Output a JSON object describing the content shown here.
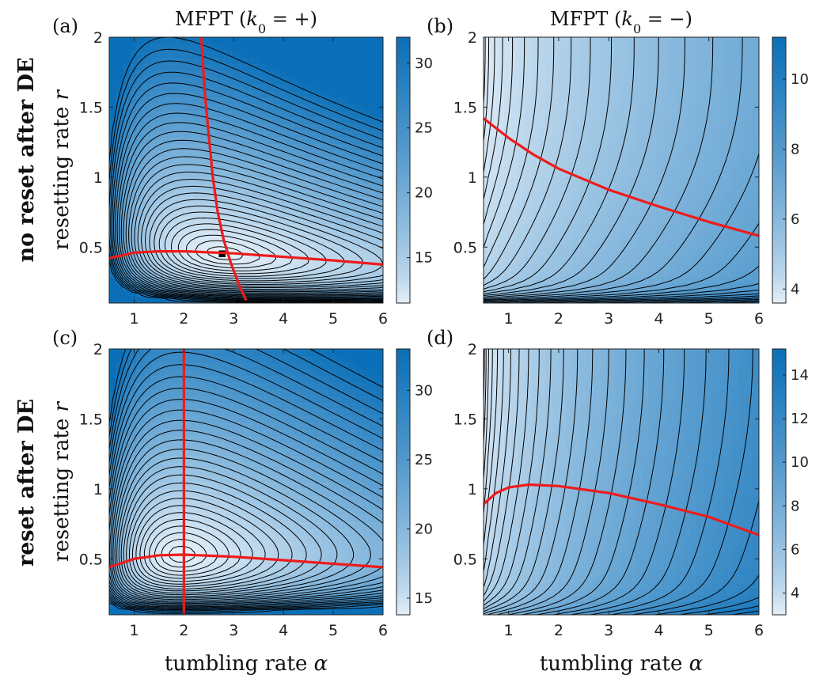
{
  "figure": {
    "row_labels": [
      "no reset after DE",
      "reset after DE"
    ],
    "xlabel_text": "tumbling rate ",
    "xlabel_symbol": "α",
    "ylabel_text": "resetting rate ",
    "ylabel_symbol": "r",
    "colors": {
      "low": "#e3eef8",
      "high": "#0a6fb8",
      "contour": "#000000",
      "optimal_curve": "#ee1b1b"
    }
  },
  "chart_data": [
    {
      "type": "heatmap",
      "panel_label": "(a)",
      "title": "MFPT (k0 = +)",
      "title_parts": {
        "pre": "MFPT (",
        "sym": "k",
        "sub": "0",
        "post": " = +)"
      },
      "xlabel": "",
      "ylabel": "resetting rate r",
      "xlim": [
        0.5,
        6
      ],
      "ylim": [
        0.1,
        2
      ],
      "xticks": [
        "1",
        "2",
        "3",
        "4",
        "5",
        "6"
      ],
      "yticks": [
        "0.5",
        "1",
        "1.5",
        "2"
      ],
      "colorbar": {
        "min": 11.5,
        "max": 32,
        "ticks": [
          "15",
          "20",
          "25",
          "30"
        ],
        "tick_values": [
          15,
          20,
          25,
          30
        ]
      },
      "minimum_point": {
        "alpha": 2.9,
        "r": 0.45
      },
      "optimal_curves": [
        {
          "points": [
            [
              0.5,
              0.42
            ],
            [
              1.0,
              0.46
            ],
            [
              1.5,
              0.47
            ],
            [
              2.0,
              0.47
            ],
            [
              3.0,
              0.455
            ],
            [
              4.0,
              0.43
            ],
            [
              5.0,
              0.405
            ],
            [
              6.0,
              0.375
            ]
          ]
        },
        {
          "points": [
            [
              2.35,
              2.0
            ],
            [
              2.42,
              1.6
            ],
            [
              2.5,
              1.3
            ],
            [
              2.58,
              1.0
            ],
            [
              2.68,
              0.75
            ],
            [
              2.8,
              0.55
            ],
            [
              2.95,
              0.38
            ],
            [
              3.12,
              0.22
            ],
            [
              3.25,
              0.12
            ]
          ]
        }
      ]
    },
    {
      "type": "heatmap",
      "panel_label": "(b)",
      "title": "MFPT (k0 = −)",
      "title_parts": {
        "pre": "MFPT (",
        "sym": "k",
        "sub": "0",
        "post": " = −)"
      },
      "xlabel": "",
      "ylabel": "",
      "xlim": [
        0.5,
        6
      ],
      "ylim": [
        0.1,
        2
      ],
      "xticks": [
        "1",
        "2",
        "3",
        "4",
        "5",
        "6"
      ],
      "yticks": [
        "0.5",
        "1",
        "1.5",
        "2"
      ],
      "colorbar": {
        "min": 3.6,
        "max": 11.2,
        "ticks": [
          "4",
          "6",
          "8",
          "10"
        ],
        "tick_values": [
          4,
          6,
          8,
          10
        ]
      },
      "optimal_curves": [
        {
          "points": [
            [
              0.5,
              1.42
            ],
            [
              1.0,
              1.28
            ],
            [
              1.5,
              1.16
            ],
            [
              2.0,
              1.06
            ],
            [
              3.0,
              0.91
            ],
            [
              4.0,
              0.79
            ],
            [
              5.0,
              0.68
            ],
            [
              6.0,
              0.58
            ]
          ]
        }
      ]
    },
    {
      "type": "heatmap",
      "panel_label": "(c)",
      "title": "",
      "xlabel": "tumbling rate α",
      "ylabel": "resetting rate r",
      "xlim": [
        0.5,
        6
      ],
      "ylim": [
        0.1,
        2
      ],
      "xticks": [
        "1",
        "2",
        "3",
        "4",
        "5",
        "6"
      ],
      "yticks": [
        "0.5",
        "1",
        "1.5",
        "2"
      ],
      "colorbar": {
        "min": 13.8,
        "max": 33,
        "ticks": [
          "15",
          "20",
          "25",
          "30"
        ],
        "tick_values": [
          15,
          20,
          25,
          30
        ]
      },
      "minimum_point": {
        "alpha": 2.0,
        "r": 0.53
      },
      "optimal_curves": [
        {
          "points": [
            [
              0.5,
              0.44
            ],
            [
              1.0,
              0.5
            ],
            [
              1.5,
              0.525
            ],
            [
              2.0,
              0.53
            ],
            [
              3.0,
              0.515
            ],
            [
              4.0,
              0.49
            ],
            [
              5.0,
              0.465
            ],
            [
              6.0,
              0.44
            ]
          ]
        },
        {
          "points": [
            [
              2.0,
              2.0
            ],
            [
              2.0,
              0.1
            ]
          ]
        }
      ]
    },
    {
      "type": "heatmap",
      "panel_label": "(d)",
      "title": "",
      "xlabel": "tumbling rate α",
      "ylabel": "",
      "xlim": [
        0.5,
        6
      ],
      "ylim": [
        0.1,
        2
      ],
      "xticks": [
        "1",
        "2",
        "3",
        "4",
        "5",
        "6"
      ],
      "yticks": [
        "0.5",
        "1",
        "1.5",
        "2"
      ],
      "colorbar": {
        "min": 3,
        "max": 15.2,
        "ticks": [
          "4",
          "6",
          "8",
          "10",
          "12",
          "14"
        ],
        "tick_values": [
          4,
          6,
          8,
          10,
          12,
          14
        ]
      },
      "optimal_curves": [
        {
          "points": [
            [
              0.5,
              0.89
            ],
            [
              0.75,
              0.97
            ],
            [
              1.0,
              1.01
            ],
            [
              1.4,
              1.03
            ],
            [
              2.0,
              1.02
            ],
            [
              3.0,
              0.97
            ],
            [
              4.0,
              0.89
            ],
            [
              5.0,
              0.8
            ],
            [
              6.0,
              0.67
            ]
          ]
        }
      ]
    }
  ]
}
